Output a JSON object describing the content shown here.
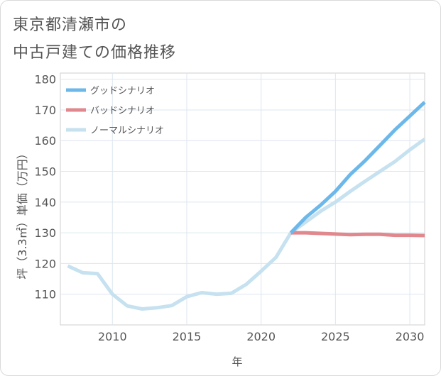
{
  "chart_data": {
    "type": "line",
    "title_line1": "東京都清瀬市の",
    "title_line2": "中古戸建ての価格推移",
    "xlabel": "年",
    "ylabel": "坪（3.3㎡）単価（万円）",
    "xlim": [
      2006.5,
      2031
    ],
    "ylim": [
      100,
      182
    ],
    "xticks": [
      2010,
      2015,
      2020,
      2025,
      2030
    ],
    "yticks": [
      110,
      120,
      130,
      140,
      150,
      160,
      170,
      180
    ],
    "grid": true,
    "legend_position": "top-left",
    "series": [
      {
        "name": "グッドシナリオ",
        "color": "#6cb8ea",
        "x": [
          2022,
          2023,
          2024,
          2025,
          2026,
          2027,
          2028,
          2029,
          2030,
          2031
        ],
        "values": [
          130,
          135,
          139,
          143.5,
          149,
          153.5,
          158.5,
          163.5,
          168,
          172.5
        ]
      },
      {
        "name": "バッドシナリオ",
        "color": "#e0888d",
        "x": [
          2022,
          2023,
          2024,
          2025,
          2026,
          2027,
          2028,
          2029,
          2030,
          2031
        ],
        "values": [
          130,
          130,
          129.8,
          129.6,
          129.4,
          129.5,
          129.5,
          129.2,
          129.2,
          129.1
        ]
      },
      {
        "name": "ノーマルシナリオ",
        "color": "#c6e1ef",
        "x": [
          2007,
          2008,
          2009,
          2010,
          2011,
          2012,
          2013,
          2014,
          2015,
          2016,
          2017,
          2018,
          2019,
          2020,
          2021,
          2022,
          2023,
          2024,
          2025,
          2026,
          2027,
          2028,
          2029,
          2030,
          2031
        ],
        "values": [
          119.2,
          117,
          116.7,
          110,
          106.2,
          105.2,
          105.6,
          106.3,
          109.2,
          110.5,
          110,
          110.3,
          113.2,
          117.5,
          122,
          130,
          133.5,
          137,
          140,
          143.5,
          146.8,
          150,
          153.2,
          157,
          160.5
        ]
      }
    ]
  }
}
